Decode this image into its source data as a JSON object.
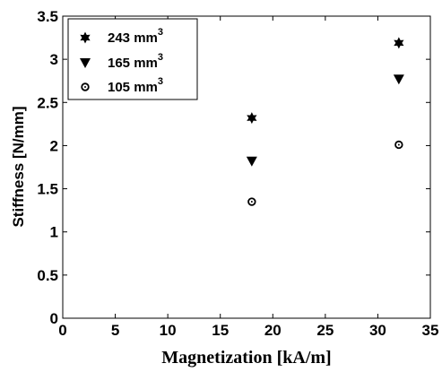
{
  "chart_data": {
    "type": "scatter",
    "xlabel": "Magnetization [kA/m]",
    "ylabel": "Stiffness [N/mm]",
    "xlim": [
      0,
      35
    ],
    "ylim": [
      0,
      3.5
    ],
    "xticks": [
      "0",
      "5",
      "10",
      "15",
      "20",
      "25",
      "30",
      "35"
    ],
    "yticks": [
      "0",
      "0.5",
      "1",
      "1.5",
      "2",
      "2.5",
      "3",
      "3.5"
    ],
    "grid": false,
    "legend_position": "top-left",
    "series": [
      {
        "name": "243 mm",
        "name_sup": "3",
        "marker": "hexagram",
        "x": [
          18,
          32
        ],
        "y": [
          2.32,
          3.19
        ]
      },
      {
        "name": "165 mm",
        "name_sup": "3",
        "marker": "triangle-down",
        "x": [
          18,
          32
        ],
        "y": [
          1.82,
          2.77
        ]
      },
      {
        "name": "105 mm",
        "name_sup": "3",
        "marker": "circle-dot",
        "x": [
          18,
          32
        ],
        "y": [
          1.35,
          2.01
        ]
      }
    ]
  }
}
